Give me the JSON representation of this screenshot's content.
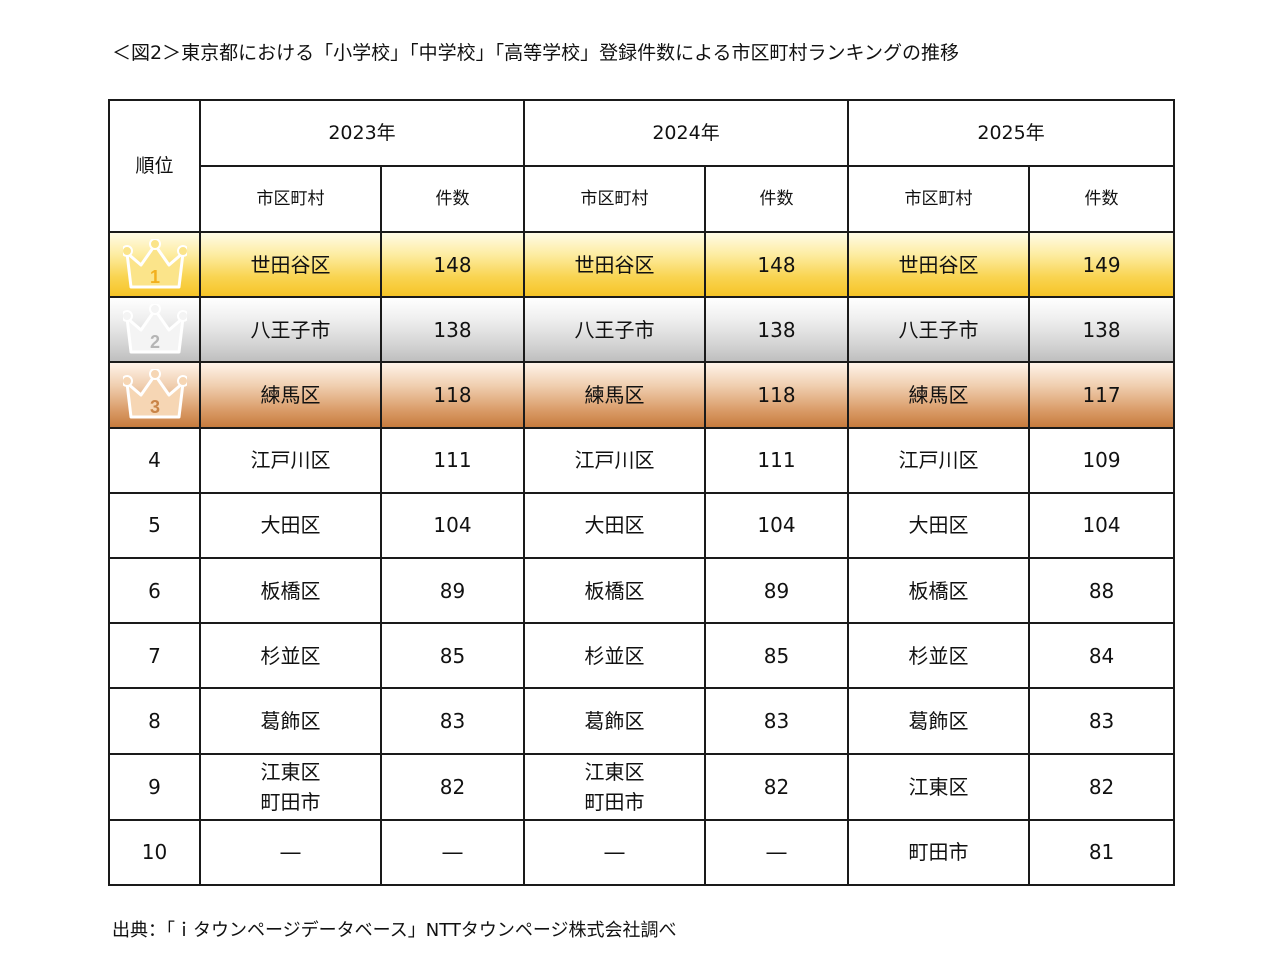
{
  "title": "＜図2＞東京都における「小学校」「中学校」「高等学校」登録件数による市区町村ランキングの推移",
  "header": {
    "rank": "順位",
    "years": [
      "2023年",
      "2024年",
      "2025年"
    ],
    "col_city": "市区町村",
    "col_count": "件数"
  },
  "medal_colors": {
    "gold": "#f6c427",
    "silver": "#bfbfbf",
    "bronze": "#c77c3e"
  },
  "rows": [
    {
      "rank": "1",
      "icon": "gold-crown-icon",
      "y2023": {
        "city": "世田谷区",
        "count": "148"
      },
      "y2024": {
        "city": "世田谷区",
        "count": "148"
      },
      "y2025": {
        "city": "世田谷区",
        "count": "149"
      }
    },
    {
      "rank": "2",
      "icon": "silver-crown-icon",
      "y2023": {
        "city": "八王子市",
        "count": "138"
      },
      "y2024": {
        "city": "八王子市",
        "count": "138"
      },
      "y2025": {
        "city": "八王子市",
        "count": "138"
      }
    },
    {
      "rank": "3",
      "icon": "bronze-crown-icon",
      "y2023": {
        "city": "練馬区",
        "count": "118"
      },
      "y2024": {
        "city": "練馬区",
        "count": "118"
      },
      "y2025": {
        "city": "練馬区",
        "count": "117"
      }
    },
    {
      "rank": "4",
      "y2023": {
        "city": "江戸川区",
        "count": "111"
      },
      "y2024": {
        "city": "江戸川区",
        "count": "111"
      },
      "y2025": {
        "city": "江戸川区",
        "count": "109"
      }
    },
    {
      "rank": "5",
      "y2023": {
        "city": "大田区",
        "count": "104"
      },
      "y2024": {
        "city": "大田区",
        "count": "104"
      },
      "y2025": {
        "city": "大田区",
        "count": "104"
      }
    },
    {
      "rank": "6",
      "y2023": {
        "city": "板橋区",
        "count": "89"
      },
      "y2024": {
        "city": "板橋区",
        "count": "89"
      },
      "y2025": {
        "city": "板橋区",
        "count": "88"
      }
    },
    {
      "rank": "7",
      "y2023": {
        "city": "杉並区",
        "count": "85"
      },
      "y2024": {
        "city": "杉並区",
        "count": "85"
      },
      "y2025": {
        "city": "杉並区",
        "count": "84"
      }
    },
    {
      "rank": "8",
      "y2023": {
        "city": "葛飾区",
        "count": "83"
      },
      "y2024": {
        "city": "葛飾区",
        "count": "83"
      },
      "y2025": {
        "city": "葛飾区",
        "count": "83"
      }
    },
    {
      "rank": "9",
      "y2023": {
        "city_line1": "江東区",
        "city_line2": "町田市",
        "count": "82"
      },
      "y2024": {
        "city_line1": "江東区",
        "city_line2": "町田市",
        "count": "82"
      },
      "y2025": {
        "city": "江東区",
        "count": "82"
      }
    },
    {
      "rank": "10",
      "y2023": {
        "city": "―",
        "count": "―"
      },
      "y2024": {
        "city": "―",
        "count": "―"
      },
      "y2025": {
        "city": "町田市",
        "count": "81"
      }
    }
  ],
  "footer": "出典：「ｉタウンページデータベース」NTTタウンページ株式会社調べ"
}
